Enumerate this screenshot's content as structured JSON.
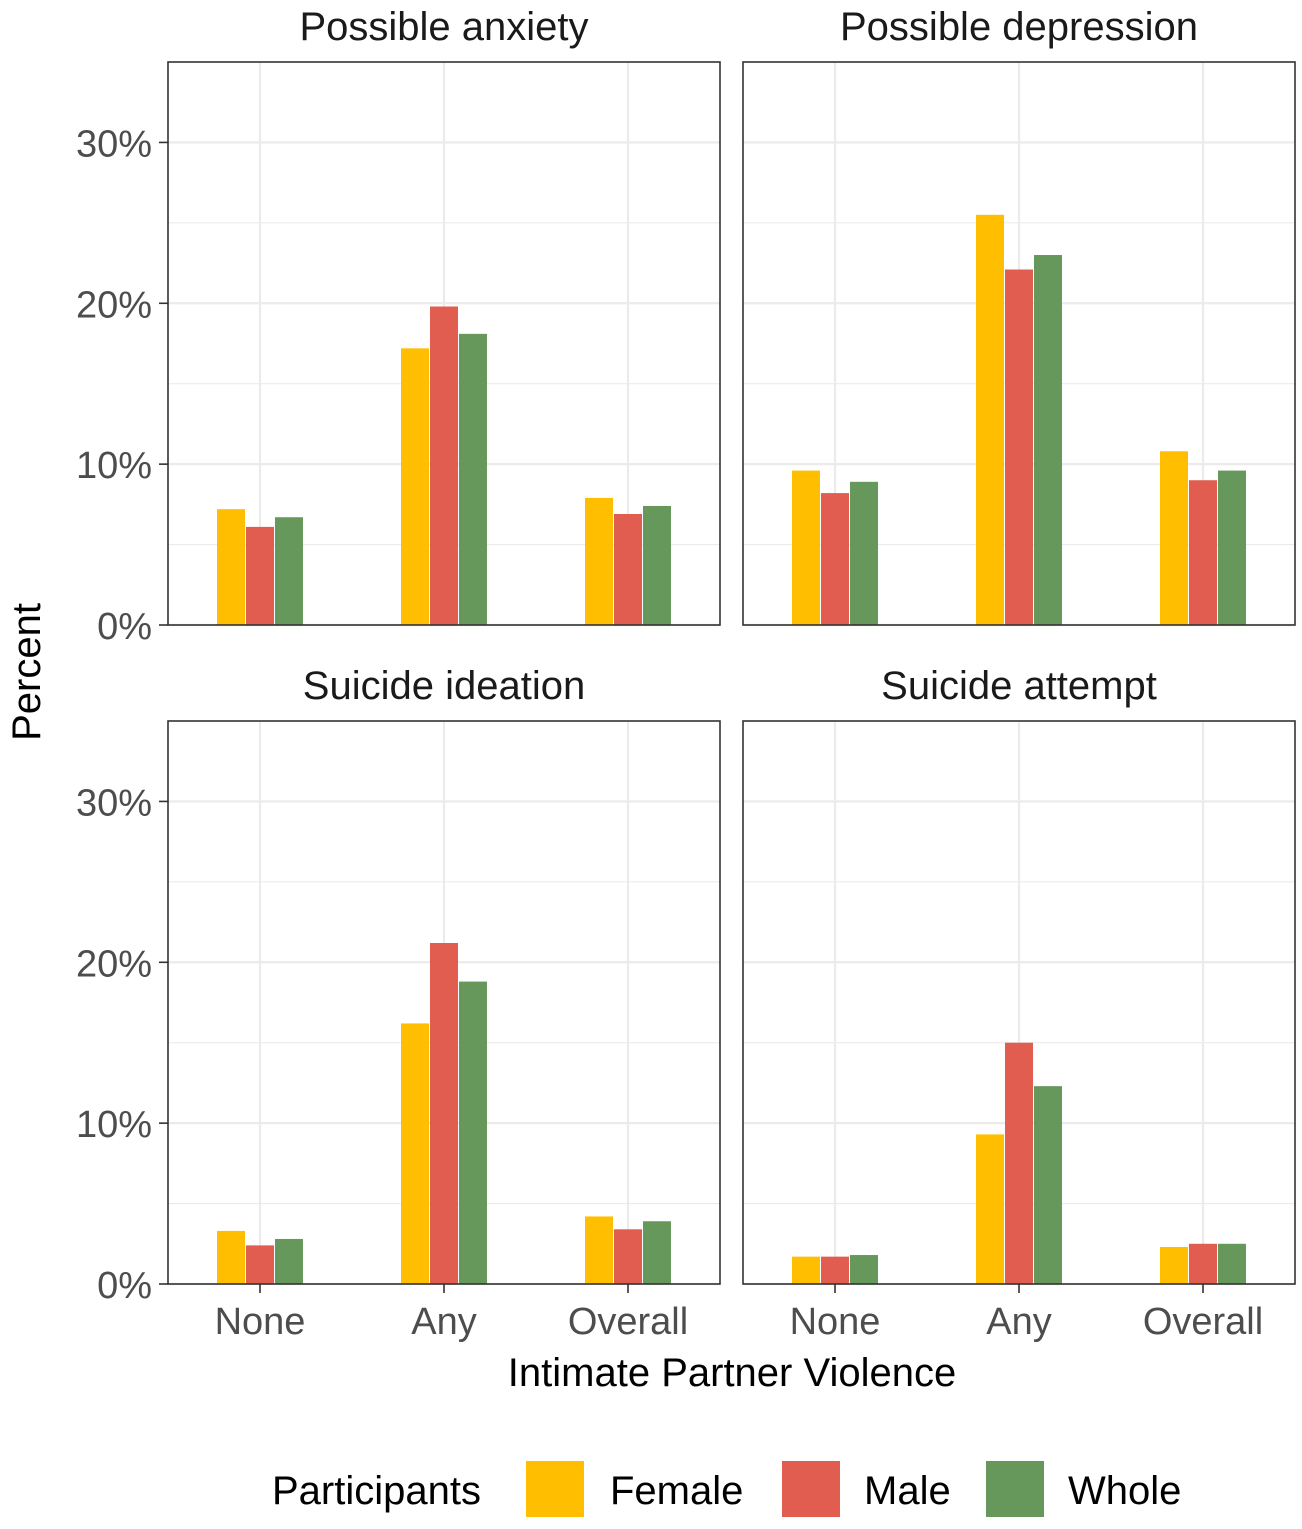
{
  "chart_data": [
    {
      "type": "bar",
      "title": "Possible anxiety",
      "categories": [
        "None",
        "Any",
        "Overall"
      ],
      "series": [
        {
          "name": "Female",
          "values": [
            7.2,
            17.2,
            7.9
          ]
        },
        {
          "name": "Male",
          "values": [
            6.1,
            19.8,
            6.9
          ]
        },
        {
          "name": "Whole",
          "values": [
            6.7,
            18.1,
            7.4
          ]
        }
      ],
      "ylim": [
        0,
        35
      ]
    },
    {
      "type": "bar",
      "title": "Possible depression",
      "categories": [
        "None",
        "Any",
        "Overall"
      ],
      "series": [
        {
          "name": "Female",
          "values": [
            9.6,
            25.5,
            10.8
          ]
        },
        {
          "name": "Male",
          "values": [
            8.2,
            22.1,
            9.0
          ]
        },
        {
          "name": "Whole",
          "values": [
            8.9,
            23.0,
            9.6
          ]
        }
      ],
      "ylim": [
        0,
        35
      ]
    },
    {
      "type": "bar",
      "title": "Suicide ideation",
      "categories": [
        "None",
        "Any",
        "Overall"
      ],
      "series": [
        {
          "name": "Female",
          "values": [
            3.3,
            16.2,
            4.2
          ]
        },
        {
          "name": "Male",
          "values": [
            2.4,
            21.2,
            3.4
          ]
        },
        {
          "name": "Whole",
          "values": [
            2.8,
            18.8,
            3.9
          ]
        }
      ],
      "ylim": [
        0,
        35
      ]
    },
    {
      "type": "bar",
      "title": "Suicide attempt",
      "categories": [
        "None",
        "Any",
        "Overall"
      ],
      "series": [
        {
          "name": "Female",
          "values": [
            1.7,
            9.3,
            2.3
          ]
        },
        {
          "name": "Male",
          "values": [
            1.7,
            15.0,
            2.5
          ]
        },
        {
          "name": "Whole",
          "values": [
            1.8,
            12.3,
            2.5
          ]
        }
      ],
      "ylim": [
        0,
        35
      ]
    }
  ],
  "y_ticks": [
    0,
    10,
    20,
    30
  ],
  "y_tick_labels": [
    "0%",
    "10%",
    "20%",
    "30%"
  ],
  "y_minor_ticks": [
    5,
    15,
    25
  ],
  "ylabel": "Percent",
  "xlabel": "Intimate Partner Violence",
  "legend": {
    "title": "Participants",
    "position": "bottom",
    "items": [
      {
        "label": "Female",
        "color": "#FFBF00"
      },
      {
        "label": "Male",
        "color": "#E05D4F"
      },
      {
        "label": "Whole",
        "color": "#66985C"
      }
    ]
  },
  "grid": true
}
